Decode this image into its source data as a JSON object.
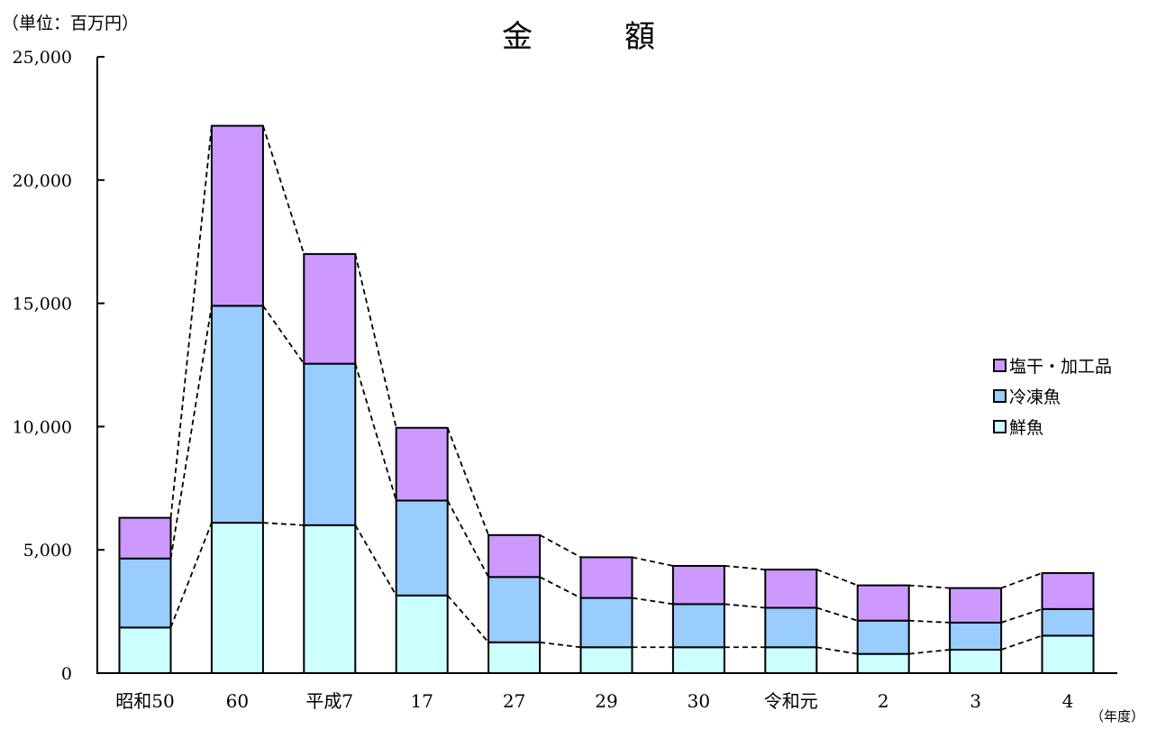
{
  "chart_data": {
    "type": "bar",
    "stacked": true,
    "title": "金　　　額",
    "unit_label": "（単位：百万円）",
    "x_unit_label": "（年度）",
    "categories": [
      "昭和50",
      "60",
      "平成7",
      "17",
      "27",
      "29",
      "30",
      "令和元",
      "2",
      "3",
      "4"
    ],
    "series": [
      {
        "name": "鮮魚",
        "color": "#ccffff",
        "values": [
          1850,
          6100,
          6000,
          3150,
          1250,
          1050,
          1050,
          1050,
          780,
          950,
          1520
        ]
      },
      {
        "name": "冷凍魚",
        "color": "#99ccff",
        "values": [
          2800,
          8800,
          6550,
          3850,
          2650,
          2000,
          1750,
          1600,
          1350,
          1100,
          1080
        ]
      },
      {
        "name": "塩干・加工品",
        "color": "#cc99ff",
        "values": [
          1650,
          7300,
          4450,
          2950,
          1700,
          1650,
          1550,
          1550,
          1430,
          1400,
          1460
        ]
      }
    ],
    "ylim": [
      0,
      25000
    ],
    "yticks": [
      "0",
      "5,000",
      "10,000",
      "15,000",
      "20,000",
      "25,000"
    ],
    "ytick_values": [
      0,
      5000,
      10000,
      15000,
      20000,
      25000
    ],
    "series_lines": "dashed",
    "legend_position": "right",
    "legend_order": [
      "塩干・加工品",
      "冷凍魚",
      "鮮魚"
    ]
  }
}
